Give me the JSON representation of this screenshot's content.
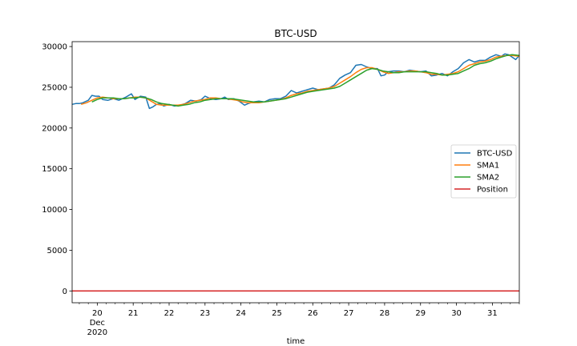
{
  "chart_data": {
    "type": "line",
    "title": "BTC-USD",
    "xlabel": "time",
    "ylabel": "",
    "xlim": [
      19.3,
      31.75
    ],
    "ylim": [
      -1450,
      30600
    ],
    "x_ticks": [
      {
        "x": 20,
        "label": "20",
        "sub": "Dec",
        "sub2": "2020"
      },
      {
        "x": 21,
        "label": "21"
      },
      {
        "x": 22,
        "label": "22"
      },
      {
        "x": 23,
        "label": "23"
      },
      {
        "x": 24,
        "label": "24"
      },
      {
        "x": 25,
        "label": "25"
      },
      {
        "x": 26,
        "label": "26"
      },
      {
        "x": 27,
        "label": "27"
      },
      {
        "x": 28,
        "label": "28"
      },
      {
        "x": 29,
        "label": "29"
      },
      {
        "x": 30,
        "label": "30"
      },
      {
        "x": 31,
        "label": "31"
      }
    ],
    "y_ticks": [
      0,
      5000,
      10000,
      15000,
      20000,
      25000,
      30000
    ],
    "legend_position": "center-right",
    "series": [
      {
        "name": "BTC-USD",
        "color": "#1f77b4",
        "points": [
          [
            19.3,
            22900
          ],
          [
            19.4,
            23000
          ],
          [
            19.5,
            23000
          ],
          [
            19.6,
            23100
          ],
          [
            19.75,
            23400
          ],
          [
            19.85,
            24000
          ],
          [
            19.95,
            23900
          ],
          [
            20.05,
            23900
          ],
          [
            20.15,
            23500
          ],
          [
            20.3,
            23400
          ],
          [
            20.45,
            23600
          ],
          [
            20.6,
            23400
          ],
          [
            20.8,
            23800
          ],
          [
            20.95,
            24200
          ],
          [
            21.05,
            23500
          ],
          [
            21.2,
            23900
          ],
          [
            21.35,
            23800
          ],
          [
            21.45,
            22400
          ],
          [
            21.55,
            22600
          ],
          [
            21.65,
            22900
          ],
          [
            21.75,
            23000
          ],
          [
            21.85,
            22700
          ],
          [
            22.0,
            22900
          ],
          [
            22.15,
            22700
          ],
          [
            22.3,
            22800
          ],
          [
            22.45,
            23000
          ],
          [
            22.6,
            23400
          ],
          [
            22.75,
            23300
          ],
          [
            22.9,
            23500
          ],
          [
            23.0,
            23900
          ],
          [
            23.15,
            23600
          ],
          [
            23.3,
            23500
          ],
          [
            23.45,
            23600
          ],
          [
            23.55,
            23800
          ],
          [
            23.65,
            23500
          ],
          [
            23.8,
            23600
          ],
          [
            23.95,
            23300
          ],
          [
            24.1,
            22800
          ],
          [
            24.2,
            23000
          ],
          [
            24.35,
            23200
          ],
          [
            24.5,
            23300
          ],
          [
            24.65,
            23200
          ],
          [
            24.8,
            23500
          ],
          [
            24.95,
            23600
          ],
          [
            25.1,
            23600
          ],
          [
            25.25,
            23900
          ],
          [
            25.4,
            24600
          ],
          [
            25.55,
            24300
          ],
          [
            25.7,
            24500
          ],
          [
            25.85,
            24700
          ],
          [
            26.0,
            24900
          ],
          [
            26.15,
            24700
          ],
          [
            26.3,
            24800
          ],
          [
            26.45,
            24900
          ],
          [
            26.6,
            25300
          ],
          [
            26.75,
            26100
          ],
          [
            26.9,
            26500
          ],
          [
            27.05,
            26800
          ],
          [
            27.2,
            27700
          ],
          [
            27.35,
            27800
          ],
          [
            27.5,
            27500
          ],
          [
            27.65,
            27300
          ],
          [
            27.8,
            27300
          ],
          [
            27.9,
            26400
          ],
          [
            28.0,
            26500
          ],
          [
            28.1,
            26900
          ],
          [
            28.25,
            27000
          ],
          [
            28.4,
            27000
          ],
          [
            28.55,
            26900
          ],
          [
            28.7,
            27100
          ],
          [
            28.85,
            27000
          ],
          [
            29.0,
            26900
          ],
          [
            29.15,
            27000
          ],
          [
            29.3,
            26400
          ],
          [
            29.45,
            26500
          ],
          [
            29.6,
            26700
          ],
          [
            29.75,
            26400
          ],
          [
            29.9,
            26900
          ],
          [
            30.05,
            27300
          ],
          [
            30.2,
            28000
          ],
          [
            30.35,
            28400
          ],
          [
            30.5,
            28100
          ],
          [
            30.65,
            28300
          ],
          [
            30.8,
            28300
          ],
          [
            30.95,
            28700
          ],
          [
            31.1,
            29000
          ],
          [
            31.25,
            28800
          ],
          [
            31.35,
            29100
          ],
          [
            31.45,
            29000
          ],
          [
            31.55,
            28700
          ],
          [
            31.65,
            28400
          ],
          [
            31.75,
            28900
          ]
        ]
      },
      {
        "name": "SMA1",
        "color": "#ff7f0e",
        "points": [
          [
            19.55,
            22900
          ],
          [
            19.7,
            23100
          ],
          [
            19.85,
            23400
          ],
          [
            20.0,
            23700
          ],
          [
            20.15,
            23800
          ],
          [
            20.3,
            23700
          ],
          [
            20.45,
            23600
          ],
          [
            20.6,
            23600
          ],
          [
            20.75,
            23600
          ],
          [
            20.9,
            23700
          ],
          [
            21.05,
            23800
          ],
          [
            21.2,
            23800
          ],
          [
            21.35,
            23700
          ],
          [
            21.5,
            23300
          ],
          [
            21.65,
            22900
          ],
          [
            21.8,
            22800
          ],
          [
            21.95,
            22800
          ],
          [
            22.1,
            22800
          ],
          [
            22.25,
            22800
          ],
          [
            22.4,
            22900
          ],
          [
            22.55,
            23100
          ],
          [
            22.7,
            23300
          ],
          [
            22.85,
            23400
          ],
          [
            23.0,
            23500
          ],
          [
            23.15,
            23700
          ],
          [
            23.3,
            23700
          ],
          [
            23.45,
            23600
          ],
          [
            23.6,
            23600
          ],
          [
            23.75,
            23500
          ],
          [
            23.9,
            23400
          ],
          [
            24.05,
            23200
          ],
          [
            24.2,
            23100
          ],
          [
            24.35,
            23100
          ],
          [
            24.5,
            23100
          ],
          [
            24.65,
            23200
          ],
          [
            24.8,
            23300
          ],
          [
            24.95,
            23400
          ],
          [
            25.1,
            23500
          ],
          [
            25.25,
            23700
          ],
          [
            25.4,
            24000
          ],
          [
            25.55,
            24200
          ],
          [
            25.7,
            24300
          ],
          [
            25.85,
            24500
          ],
          [
            26.0,
            24600
          ],
          [
            26.15,
            24700
          ],
          [
            26.3,
            24800
          ],
          [
            26.45,
            24900
          ],
          [
            26.6,
            25100
          ],
          [
            26.75,
            25500
          ],
          [
            26.9,
            25900
          ],
          [
            27.05,
            26300
          ],
          [
            27.2,
            26800
          ],
          [
            27.35,
            27200
          ],
          [
            27.5,
            27400
          ],
          [
            27.65,
            27400
          ],
          [
            27.8,
            27200
          ],
          [
            27.95,
            26900
          ],
          [
            28.1,
            26700
          ],
          [
            28.25,
            26800
          ],
          [
            28.4,
            26900
          ],
          [
            28.55,
            26900
          ],
          [
            28.7,
            27000
          ],
          [
            28.85,
            27000
          ],
          [
            29.0,
            26900
          ],
          [
            29.15,
            26800
          ],
          [
            29.3,
            26600
          ],
          [
            29.45,
            26600
          ],
          [
            29.6,
            26500
          ],
          [
            29.75,
            26600
          ],
          [
            29.9,
            26700
          ],
          [
            30.05,
            26900
          ],
          [
            30.2,
            27300
          ],
          [
            30.35,
            27700
          ],
          [
            30.5,
            27900
          ],
          [
            30.65,
            28100
          ],
          [
            30.8,
            28200
          ],
          [
            30.95,
            28400
          ],
          [
            31.1,
            28700
          ],
          [
            31.25,
            28800
          ],
          [
            31.4,
            28900
          ],
          [
            31.55,
            28900
          ],
          [
            31.75,
            28800
          ]
        ]
      },
      {
        "name": "SMA2",
        "color": "#2ca02c",
        "points": [
          [
            19.85,
            23200
          ],
          [
            20.0,
            23500
          ],
          [
            20.15,
            23700
          ],
          [
            20.3,
            23700
          ],
          [
            20.45,
            23700
          ],
          [
            20.6,
            23600
          ],
          [
            20.75,
            23600
          ],
          [
            20.9,
            23700
          ],
          [
            21.05,
            23700
          ],
          [
            21.2,
            23800
          ],
          [
            21.35,
            23700
          ],
          [
            21.5,
            23500
          ],
          [
            21.65,
            23200
          ],
          [
            21.8,
            23000
          ],
          [
            21.95,
            22900
          ],
          [
            22.1,
            22800
          ],
          [
            22.25,
            22700
          ],
          [
            22.4,
            22800
          ],
          [
            22.55,
            22900
          ],
          [
            22.7,
            23100
          ],
          [
            22.85,
            23200
          ],
          [
            23.0,
            23400
          ],
          [
            23.15,
            23500
          ],
          [
            23.3,
            23600
          ],
          [
            23.45,
            23600
          ],
          [
            23.6,
            23600
          ],
          [
            23.75,
            23600
          ],
          [
            23.9,
            23500
          ],
          [
            24.05,
            23400
          ],
          [
            24.2,
            23300
          ],
          [
            24.35,
            23200
          ],
          [
            24.5,
            23200
          ],
          [
            24.65,
            23200
          ],
          [
            24.8,
            23300
          ],
          [
            24.95,
            23400
          ],
          [
            25.1,
            23500
          ],
          [
            25.25,
            23600
          ],
          [
            25.4,
            23800
          ],
          [
            25.55,
            24000
          ],
          [
            25.7,
            24200
          ],
          [
            25.85,
            24400
          ],
          [
            26.0,
            24500
          ],
          [
            26.15,
            24600
          ],
          [
            26.3,
            24700
          ],
          [
            26.45,
            24800
          ],
          [
            26.6,
            24900
          ],
          [
            26.75,
            25100
          ],
          [
            26.9,
            25500
          ],
          [
            27.05,
            25900
          ],
          [
            27.2,
            26300
          ],
          [
            27.35,
            26700
          ],
          [
            27.5,
            27100
          ],
          [
            27.65,
            27300
          ],
          [
            27.8,
            27200
          ],
          [
            27.95,
            27000
          ],
          [
            28.1,
            26900
          ],
          [
            28.25,
            26800
          ],
          [
            28.4,
            26800
          ],
          [
            28.55,
            26900
          ],
          [
            28.7,
            26900
          ],
          [
            28.85,
            26900
          ],
          [
            29.0,
            26900
          ],
          [
            29.15,
            26900
          ],
          [
            29.3,
            26800
          ],
          [
            29.45,
            26700
          ],
          [
            29.6,
            26500
          ],
          [
            29.75,
            26500
          ],
          [
            29.9,
            26600
          ],
          [
            30.05,
            26700
          ],
          [
            30.2,
            27000
          ],
          [
            30.35,
            27300
          ],
          [
            30.5,
            27700
          ],
          [
            30.65,
            27900
          ],
          [
            30.8,
            28000
          ],
          [
            30.95,
            28200
          ],
          [
            31.1,
            28500
          ],
          [
            31.25,
            28700
          ],
          [
            31.4,
            28900
          ],
          [
            31.55,
            29000
          ],
          [
            31.75,
            28900
          ]
        ]
      },
      {
        "name": "Position",
        "color": "#d62728",
        "points": [
          [
            19.3,
            0
          ],
          [
            31.75,
            0
          ]
        ]
      }
    ]
  }
}
